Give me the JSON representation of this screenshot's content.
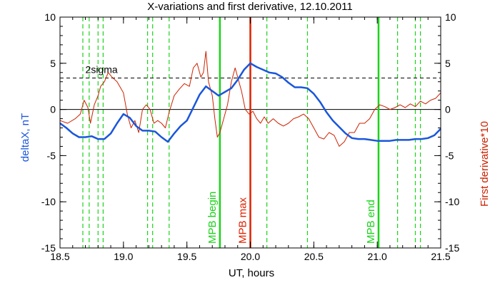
{
  "chart_data": {
    "type": "line",
    "title": "X-variations and first derivative, 12.10.2011",
    "xlabel": "UT, hours",
    "ylabel_left": "deltaX, nT",
    "ylabel_right": "First derivative*10",
    "xlim": [
      18.5,
      21.5
    ],
    "ylim": [
      -15,
      10
    ],
    "x_ticks": [
      "18.5",
      "19.0",
      "19.5",
      "20.0",
      "20.5",
      "21.0",
      "21.5"
    ],
    "x_tick_values": [
      18.5,
      19.0,
      19.5,
      20.0,
      20.5,
      21.0,
      21.5
    ],
    "y_ticks": [
      "10",
      "5",
      "0",
      "-5",
      "-10",
      "-15"
    ],
    "y_tick_values": [
      10,
      5,
      0,
      -5,
      -10,
      -15
    ],
    "colors": {
      "deltaX": "#1a56db",
      "derivative": "#cc2200",
      "green": "#19d419",
      "max": "#dd2200",
      "ylabel_left": "#1a56db",
      "ylabel_right": "#cc2200"
    },
    "sigma": {
      "label": "2sigma",
      "value": 3.4
    },
    "zero_line": 0,
    "dashed_green_x": [
      18.68,
      18.73,
      18.8,
      18.84,
      19.19,
      19.23,
      19.36,
      20.13,
      20.45,
      21.16,
      21.3,
      21.34
    ],
    "markers": [
      {
        "label": "MPB begin",
        "x": 19.76,
        "color": "#19d419"
      },
      {
        "label": "MPB max",
        "x": 20.0,
        "color": "#dd2200"
      },
      {
        "label": "MPB end",
        "x": 21.01,
        "color": "#19d419"
      }
    ],
    "series": [
      {
        "name": "deltaX",
        "x": [
          18.5,
          18.55,
          18.6,
          18.65,
          18.7,
          18.75,
          18.8,
          18.85,
          18.9,
          18.95,
          19.0,
          19.05,
          19.1,
          19.15,
          19.2,
          19.25,
          19.3,
          19.35,
          19.4,
          19.45,
          19.5,
          19.55,
          19.6,
          19.65,
          19.7,
          19.75,
          19.8,
          19.85,
          19.9,
          19.95,
          20.0,
          20.05,
          20.1,
          20.15,
          20.2,
          20.25,
          20.3,
          20.35,
          20.4,
          20.45,
          20.5,
          20.55,
          20.6,
          20.65,
          20.7,
          20.75,
          20.8,
          20.85,
          20.9,
          20.95,
          21.0,
          21.05,
          21.1,
          21.15,
          21.2,
          21.25,
          21.3,
          21.35,
          21.4,
          21.45,
          21.5
        ],
        "values": [
          -1.5,
          -2.0,
          -2.6,
          -3.0,
          -3.0,
          -2.9,
          -3.2,
          -3.2,
          -2.6,
          -1.5,
          -0.5,
          -0.9,
          -1.8,
          -2.3,
          -2.3,
          -2.4,
          -3.0,
          -3.5,
          -2.6,
          -1.8,
          -1.2,
          0.2,
          1.6,
          2.5,
          2.0,
          1.5,
          1.9,
          2.3,
          3.2,
          4.3,
          5.0,
          4.6,
          4.3,
          4.0,
          3.9,
          3.5,
          2.9,
          2.4,
          2.4,
          2.3,
          1.7,
          0.8,
          -0.3,
          -1.2,
          -1.9,
          -2.6,
          -3.1,
          -3.2,
          -3.2,
          -3.3,
          -3.4,
          -3.4,
          -3.4,
          -3.3,
          -3.3,
          -3.3,
          -3.2,
          -3.2,
          -3.1,
          -2.8,
          -2.1
        ]
      },
      {
        "name": "First derivative*10",
        "x": [
          18.5,
          18.56,
          18.62,
          18.66,
          18.69,
          18.72,
          18.74,
          18.77,
          18.8,
          18.82,
          18.85,
          18.88,
          18.91,
          18.95,
          19.0,
          19.03,
          19.06,
          19.09,
          19.12,
          19.15,
          19.18,
          19.21,
          19.24,
          19.27,
          19.3,
          19.33,
          19.36,
          19.4,
          19.44,
          19.48,
          19.52,
          19.55,
          19.58,
          19.61,
          19.63,
          19.65,
          19.67,
          19.7,
          19.72,
          19.74,
          19.76,
          19.79,
          19.82,
          19.85,
          19.88,
          19.91,
          19.93,
          19.96,
          19.99,
          20.02,
          20.05,
          20.08,
          20.11,
          20.14,
          20.18,
          20.22,
          20.26,
          20.3,
          20.34,
          20.38,
          20.42,
          20.46,
          20.5,
          20.54,
          20.58,
          20.62,
          20.66,
          20.7,
          20.74,
          20.78,
          20.82,
          20.86,
          20.9,
          20.94,
          20.98,
          21.02,
          21.06,
          21.1,
          21.14,
          21.18,
          21.22,
          21.26,
          21.3,
          21.34,
          21.38,
          21.42,
          21.46,
          21.5
        ],
        "values": [
          -1.2,
          -1.5,
          -1.0,
          -0.5,
          1.0,
          0.2,
          -1.5,
          0.5,
          1.5,
          2.5,
          3.0,
          4.0,
          3.5,
          3.0,
          1.8,
          -0.5,
          -2.0,
          -1.2,
          -2.5,
          0.0,
          0.5,
          0.0,
          -1.5,
          -1.2,
          -1.5,
          -2.0,
          -0.3,
          1.5,
          2.2,
          2.8,
          2.5,
          4.5,
          5.0,
          3.5,
          4.0,
          6.3,
          3.0,
          1.5,
          -1.0,
          -3.0,
          -2.5,
          -1.0,
          0.5,
          3.0,
          4.5,
          3.0,
          2.0,
          0.0,
          -0.5,
          -0.2,
          -1.0,
          -1.5,
          -0.8,
          -1.5,
          -1.0,
          -1.5,
          -1.8,
          -1.5,
          -1.0,
          -0.8,
          -0.5,
          -1.0,
          -2.0,
          -3.0,
          -3.2,
          -2.5,
          -2.8,
          -4.0,
          -3.5,
          -2.5,
          -2.5,
          -1.5,
          -1.5,
          -1.0,
          0.0,
          0.5,
          0.3,
          0.0,
          0.2,
          0.5,
          0.2,
          0.6,
          0.3,
          0.9,
          0.6,
          1.0,
          1.2,
          1.8
        ]
      }
    ]
  }
}
